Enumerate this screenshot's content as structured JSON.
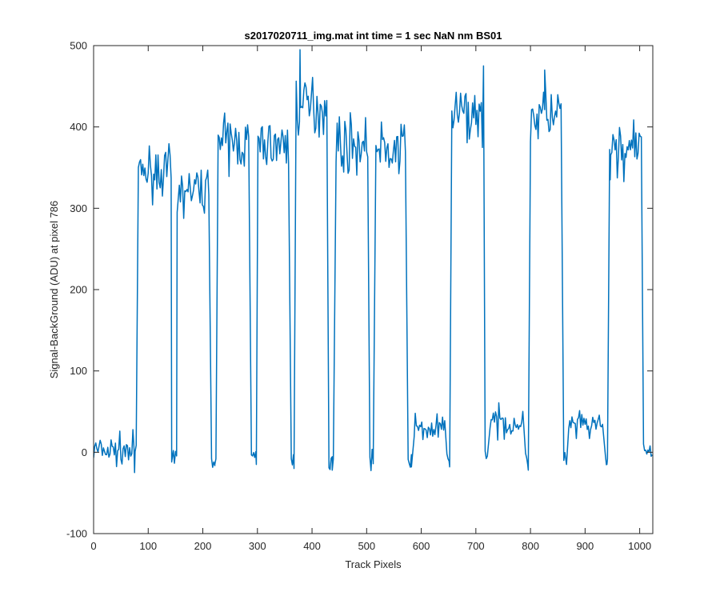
{
  "chart_data": {
    "type": "line",
    "title": "s2017020711_img.mat int time = 1 sec  NaN nm BS01",
    "xlabel": "Track Pixels",
    "ylabel": "Signal-BackGround (ADU) at pixel 786",
    "xlim": [
      0,
      1024
    ],
    "ylim": [
      -100,
      500
    ],
    "xticks": [
      0,
      100,
      200,
      300,
      400,
      500,
      600,
      700,
      800,
      900,
      1000
    ],
    "yticks": [
      -100,
      0,
      100,
      200,
      300,
      400,
      500
    ],
    "line_color": "#0072BD",
    "noise_seed": 7,
    "segments": [
      {
        "x0": 0,
        "x1": 78,
        "level": 2,
        "noise": 9
      },
      {
        "x0": 82,
        "x1": 142,
        "level": 345,
        "noise": 14
      },
      {
        "x0": 146,
        "x1": 153,
        "level": -8,
        "noise": 5
      },
      {
        "x0": 157,
        "x1": 212,
        "level": 322,
        "noise": 14
      },
      {
        "x0": 216,
        "x1": 224,
        "level": -8,
        "noise": 5
      },
      {
        "x0": 228,
        "x1": 285,
        "level": 380,
        "noise": 16
      },
      {
        "x0": 289,
        "x1": 297,
        "level": -5,
        "noise": 6
      },
      {
        "x0": 301,
        "x1": 358,
        "level": 378,
        "noise": 15
      },
      {
        "x0": 362,
        "x1": 367,
        "level": -8,
        "noise": 6
      },
      {
        "x0": 371,
        "x1": 427,
        "level": 425,
        "noise": 17
      },
      {
        "x0": 431,
        "x1": 440,
        "level": -10,
        "noise": 6
      },
      {
        "x0": 444,
        "x1": 502,
        "level": 378,
        "noise": 17
      },
      {
        "x0": 506,
        "x1": 513,
        "level": -8,
        "noise": 6
      },
      {
        "x0": 517,
        "x1": 572,
        "level": 370,
        "noise": 17
      },
      {
        "x0": 576,
        "x1": 583,
        "level": -6,
        "noise": 6
      },
      {
        "x0": 587,
        "x1": 643,
        "level": 28,
        "noise": 9
      },
      {
        "x0": 647,
        "x1": 652,
        "level": -5,
        "noise": 5
      },
      {
        "x0": 656,
        "x1": 713,
        "level": 415,
        "noise": 18
      },
      {
        "x0": 717,
        "x1": 722,
        "level": -3,
        "noise": 6
      },
      {
        "x0": 726,
        "x1": 787,
        "level": 36,
        "noise": 9
      },
      {
        "x0": 791,
        "x1": 796,
        "level": -10,
        "noise": 6
      },
      {
        "x0": 800,
        "x1": 857,
        "level": 415,
        "noise": 17
      },
      {
        "x0": 861,
        "x1": 866,
        "level": -8,
        "noise": 6
      },
      {
        "x0": 870,
        "x1": 933,
        "level": 32,
        "noise": 9
      },
      {
        "x0": 937,
        "x1": 941,
        "level": -8,
        "noise": 5
      },
      {
        "x0": 945,
        "x1": 1003,
        "level": 372,
        "noise": 16
      },
      {
        "x0": 1007,
        "x1": 1024,
        "level": 3,
        "noise": 6
      }
    ],
    "spikes": [
      {
        "x": 75,
        "y": -25
      },
      {
        "x": 143,
        "y": -12
      },
      {
        "x": 153,
        "y": 295
      },
      {
        "x": 222,
        "y": -15
      },
      {
        "x": 228,
        "y": 390
      },
      {
        "x": 298,
        "y": -15
      },
      {
        "x": 367,
        "y": -20
      },
      {
        "x": 378,
        "y": 495
      },
      {
        "x": 437,
        "y": -22
      },
      {
        "x": 512,
        "y": -14
      },
      {
        "x": 582,
        "y": -18
      },
      {
        "x": 652,
        "y": -18
      },
      {
        "x": 714,
        "y": 475
      },
      {
        "x": 796,
        "y": -22
      },
      {
        "x": 826,
        "y": 470
      },
      {
        "x": 866,
        "y": -15
      },
      {
        "x": 940,
        "y": -15
      },
      {
        "x": 946,
        "y": 335
      }
    ]
  }
}
